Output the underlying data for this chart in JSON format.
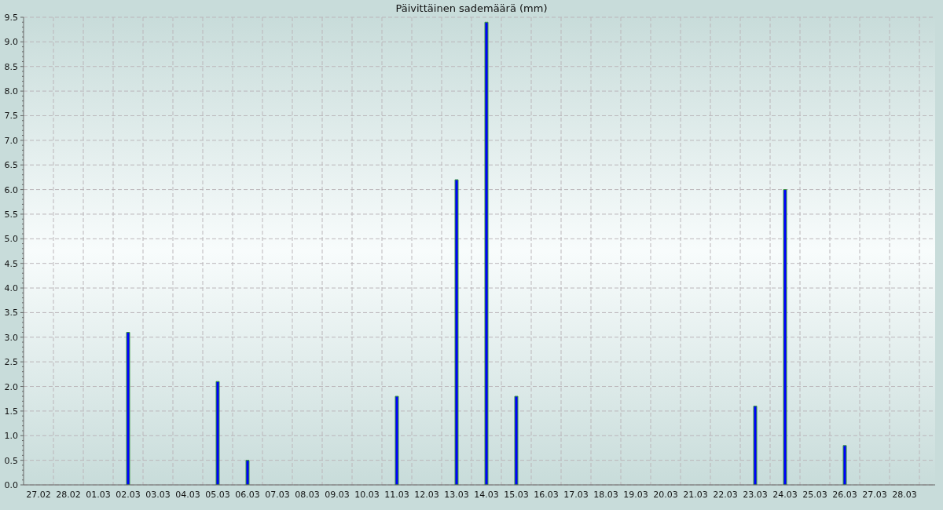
{
  "chart_data": {
    "type": "bar",
    "title": "Päivittäinen sademäärä (mm)",
    "categories": [
      "27.02",
      "28.02",
      "01.03",
      "02.03",
      "03.03",
      "04.03",
      "05.03",
      "06.03",
      "07.03",
      "08.03",
      "09.03",
      "10.03",
      "11.03",
      "12.03",
      "13.03",
      "14.03",
      "15.03",
      "16.03",
      "17.03",
      "18.03",
      "19.03",
      "20.03",
      "21.03",
      "22.03",
      "23.03",
      "24.03",
      "25.03",
      "26.03",
      "27.03",
      "28.03"
    ],
    "values": [
      0,
      0,
      0,
      3.1,
      0,
      0,
      2.1,
      0.5,
      0,
      0,
      0,
      0,
      1.8,
      0,
      6.2,
      9.4,
      1.8,
      0,
      0,
      0,
      0,
      0,
      0,
      0,
      1.6,
      6.0,
      0,
      0.8,
      0,
      0
    ],
    "color": "#0000ff",
    "ylim": [
      0,
      9.5
    ],
    "yticks": [
      {
        "value": 0,
        "label": "0.0"
      },
      {
        "value": 0.1,
        "label": null
      },
      {
        "value": 0.2,
        "label": null
      },
      {
        "value": 0.3,
        "label": null
      },
      {
        "value": 0.4,
        "label": null
      },
      {
        "value": 0.5,
        "label": "0.5"
      },
      {
        "value": 0.6,
        "label": null
      },
      {
        "value": 0.7,
        "label": null
      },
      {
        "value": 0.8,
        "label": null
      },
      {
        "value": 0.9,
        "label": null
      },
      {
        "value": 1,
        "label": "1.0"
      },
      {
        "value": 1.1,
        "label": null
      },
      {
        "value": 1.2,
        "label": null
      },
      {
        "value": 1.3,
        "label": null
      },
      {
        "value": 1.4,
        "label": null
      },
      {
        "value": 1.5,
        "label": "1.5"
      },
      {
        "value": 1.6,
        "label": null
      },
      {
        "value": 1.7,
        "label": null
      },
      {
        "value": 1.8,
        "label": null
      },
      {
        "value": 1.9,
        "label": null
      },
      {
        "value": 2,
        "label": "2.0"
      },
      {
        "value": 2.1,
        "label": null
      },
      {
        "value": 2.2,
        "label": null
      },
      {
        "value": 2.3,
        "label": null
      },
      {
        "value": 2.4,
        "label": null
      },
      {
        "value": 2.5,
        "label": "2.5"
      },
      {
        "value": 2.6,
        "label": null
      },
      {
        "value": 2.7,
        "label": null
      },
      {
        "value": 2.8,
        "label": null
      },
      {
        "value": 2.9,
        "label": null
      },
      {
        "value": 3,
        "label": "3.0"
      },
      {
        "value": 3.1,
        "label": null
      },
      {
        "value": 3.2,
        "label": null
      },
      {
        "value": 3.3,
        "label": null
      },
      {
        "value": 3.4,
        "label": null
      },
      {
        "value": 3.5,
        "label": "3.5"
      },
      {
        "value": 3.6,
        "label": null
      },
      {
        "value": 3.7,
        "label": null
      },
      {
        "value": 3.8,
        "label": null
      },
      {
        "value": 3.9,
        "label": null
      },
      {
        "value": 4,
        "label": "4.0"
      },
      {
        "value": 4.1,
        "label": null
      },
      {
        "value": 4.2,
        "label": null
      },
      {
        "value": 4.3,
        "label": null
      },
      {
        "value": 4.4,
        "label": null
      },
      {
        "value": 4.5,
        "label": "4.5"
      },
      {
        "value": 4.6,
        "label": null
      },
      {
        "value": 4.7,
        "label": null
      },
      {
        "value": 4.8,
        "label": null
      },
      {
        "value": 4.9,
        "label": null
      },
      {
        "value": 5,
        "label": "5.0"
      },
      {
        "value": 5.1,
        "label": null
      },
      {
        "value": 5.2,
        "label": null
      },
      {
        "value": 5.3,
        "label": null
      },
      {
        "value": 5.4,
        "label": null
      },
      {
        "value": 5.5,
        "label": "5.5"
      },
      {
        "value": 5.6,
        "label": null
      },
      {
        "value": 5.7,
        "label": null
      },
      {
        "value": 5.8,
        "label": null
      },
      {
        "value": 5.9,
        "label": null
      },
      {
        "value": 6,
        "label": "6.0"
      },
      {
        "value": 6.1,
        "label": null
      },
      {
        "value": 6.2,
        "label": null
      },
      {
        "value": 6.3,
        "label": null
      },
      {
        "value": 6.4,
        "label": null
      },
      {
        "value": 6.5,
        "label": "6.5"
      },
      {
        "value": 6.6,
        "label": null
      },
      {
        "value": 6.7,
        "label": null
      },
      {
        "value": 6.8,
        "label": null
      },
      {
        "value": 6.9,
        "label": null
      },
      {
        "value": 7,
        "label": "7.0"
      },
      {
        "value": 7.1,
        "label": null
      },
      {
        "value": 7.2,
        "label": null
      },
      {
        "value": 7.3,
        "label": null
      },
      {
        "value": 7.4,
        "label": null
      },
      {
        "value": 7.5,
        "label": "7.5"
      },
      {
        "value": 7.6,
        "label": null
      },
      {
        "value": 7.7,
        "label": null
      },
      {
        "value": 7.8,
        "label": null
      },
      {
        "value": 7.9,
        "label": null
      },
      {
        "value": 8,
        "label": "8.0"
      },
      {
        "value": 8.1,
        "label": null
      },
      {
        "value": 8.2,
        "label": null
      },
      {
        "value": 8.3,
        "label": null
      },
      {
        "value": 8.4,
        "label": null
      },
      {
        "value": 8.5,
        "label": "8.5"
      },
      {
        "value": 8.6,
        "label": null
      },
      {
        "value": 8.7,
        "label": null
      },
      {
        "value": 8.8,
        "label": null
      },
      {
        "value": 8.9,
        "label": null
      },
      {
        "value": 9,
        "label": "9.0"
      },
      {
        "value": 9.1,
        "label": null
      },
      {
        "value": 9.2,
        "label": null
      },
      {
        "value": 9.3,
        "label": null
      },
      {
        "value": 9.4,
        "label": null
      },
      {
        "value": 9.5,
        "label": "9.5"
      }
    ],
    "grid": true
  }
}
